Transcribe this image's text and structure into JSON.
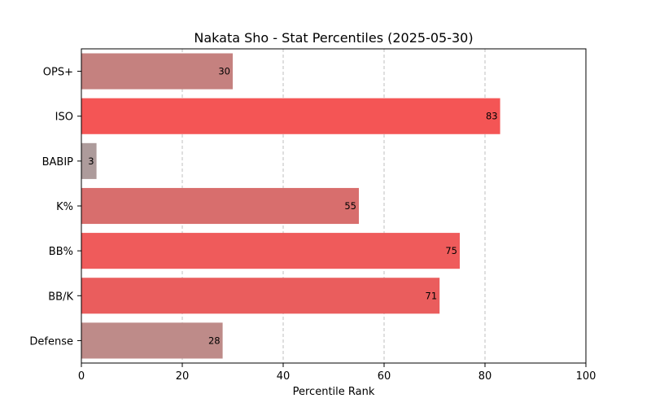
{
  "chart_data": {
    "type": "bar",
    "orientation": "horizontal",
    "title": "Nakata Sho - Stat Percentiles (2025-05-30)",
    "xlabel": "Percentile Rank",
    "ylabel": "",
    "xlim": [
      0,
      100
    ],
    "xticks": [
      0,
      20,
      40,
      60,
      80,
      100
    ],
    "grid": "vertical-dashed",
    "categories": [
      "OPS+",
      "ISO",
      "BABIP",
      "K%",
      "BB%",
      "BB/K",
      "Defense"
    ],
    "values": [
      30,
      83,
      3,
      55,
      75,
      71,
      28
    ],
    "colors": [
      "#c5817f",
      "#f45555",
      "#ad9b9b",
      "#d86e6d",
      "#ef5b5b",
      "#ea5d5d",
      "#be8b89"
    ]
  }
}
